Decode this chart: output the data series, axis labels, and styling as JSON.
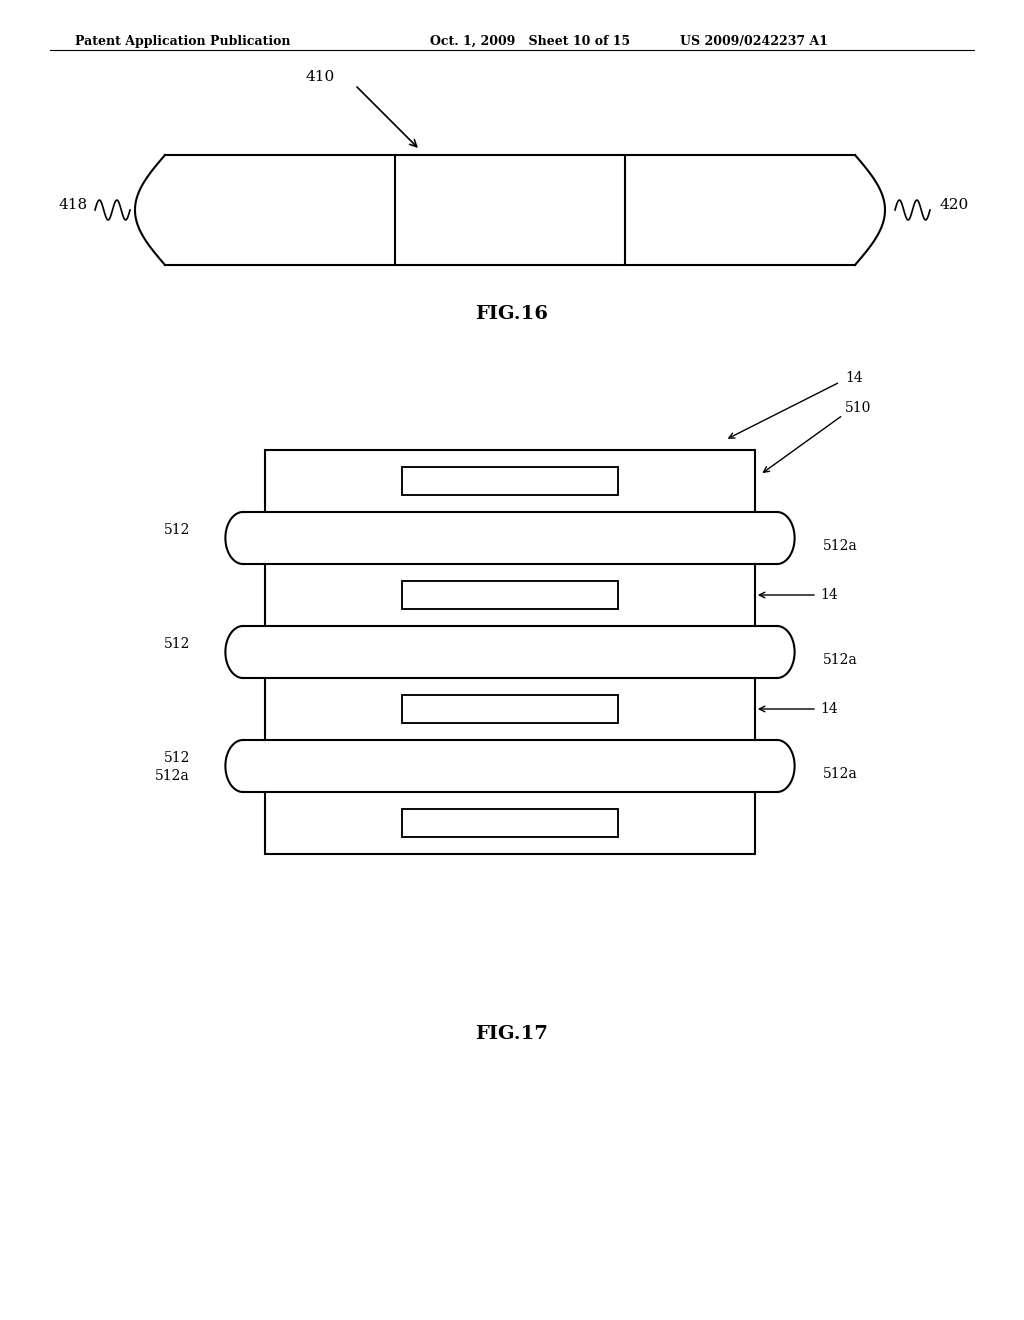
{
  "bg_color": "#ffffff",
  "header_left": "Patent Application Publication",
  "header_mid": "Oct. 1, 2009   Sheet 10 of 15",
  "header_right": "US 2009/0242237 A1",
  "fig16_label": "FIG.16",
  "fig17_label": "FIG.17",
  "line_color": "#000000",
  "line_width": 1.5,
  "label_410": "410",
  "label_418": "418",
  "label_420": "420",
  "label_14": "14",
  "label_510": "510",
  "label_512": "512",
  "label_512a": "512a"
}
